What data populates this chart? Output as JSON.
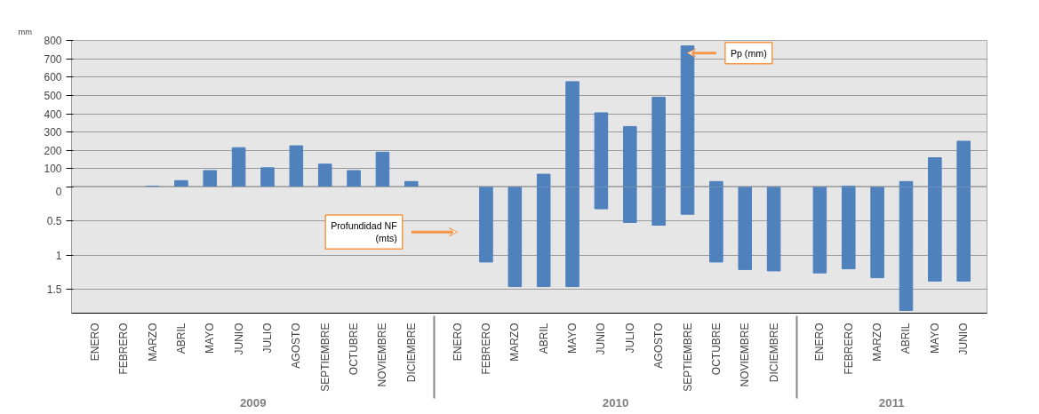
{
  "chart_data": [
    {
      "type": "bar",
      "ylabel": "mm",
      "categories": [
        "ENERO",
        "FEBRERO",
        "MARZO",
        "ABRIL",
        "MAYO",
        "JUNIO",
        "JULIO",
        "AGOSTO",
        "SEPTIEMBRE",
        "OCTUBRE",
        "NOVIEMBRE",
        "DICIEMBRE",
        "ENERO",
        "FEBRERO",
        "MARZO",
        "ABRIL",
        "MAYO",
        "JUNIO",
        "JULIO",
        "AGOSTO",
        "SEPTIEMBRE",
        "OCTUBRE",
        "NOVIEMBRE",
        "DICIEMBRE",
        "ENERO",
        "FEBRERO",
        "MARZO",
        "ABRIL",
        "MAYO",
        "JUNIO"
      ],
      "series": [
        {
          "color": "#4f81bd",
          "values": [
            null,
            null,
            5,
            35,
            90,
            215,
            105,
            225,
            125,
            90,
            190,
            30,
            null,
            null,
            null,
            70,
            575,
            405,
            330,
            490,
            770,
            30,
            null,
            null,
            null,
            5,
            null,
            30,
            160,
            250
          ]
        }
      ],
      "ylim": [
        0,
        800
      ],
      "yticks": [
        100,
        200,
        300,
        400,
        500,
        600,
        700,
        800
      ],
      "grid": "y",
      "tick_labels": "y",
      "annotations": [
        "Pp (mm)"
      ]
    },
    {
      "type": "bar",
      "categories": [
        "ENERO",
        "FEBRERO",
        "MARZO",
        "ABRIL",
        "MAYO",
        "JUNIO",
        "JULIO",
        "AGOSTO",
        "SEPTIEMBRE",
        "OCTUBRE",
        "NOVIEMBRE",
        "DICIEMBRE",
        "ENERO",
        "FEBRERO",
        "MARZO",
        "ABRIL",
        "MAYO",
        "JUNIO",
        "JULIO",
        "AGOSTO",
        "SEPTIEMBRE",
        "OCTUBRE",
        "NOVIEMBRE",
        "DICIEMBRE",
        "ENERO",
        "FEBRERO",
        "MARZO",
        "ABRIL",
        "MAYO",
        "JUNIO"
      ],
      "series": [
        {
          "color": "#4f81bd",
          "values": [
            null,
            null,
            null,
            null,
            null,
            null,
            null,
            null,
            null,
            null,
            null,
            null,
            null,
            1.1,
            1.46,
            1.46,
            1.46,
            0.32,
            0.52,
            0.56,
            0.4,
            1.1,
            1.21,
            1.23,
            1.26,
            1.2,
            1.33,
            1.81,
            1.38,
            1.38
          ]
        }
      ],
      "ylim": [
        1.85,
        0
      ],
      "yticks": [
        0,
        0.5,
        1,
        1.5
      ],
      "grid": "y",
      "annotations": [
        "Profundidad NF\n(mts)",
        "2009",
        "2010",
        "2011"
      ]
    }
  ]
}
